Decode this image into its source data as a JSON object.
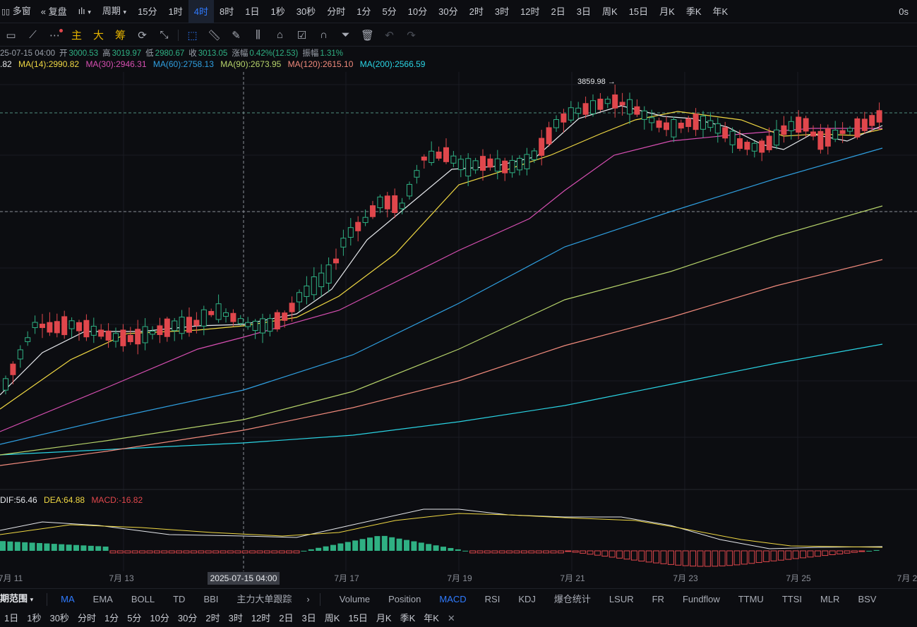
{
  "topbar": {
    "items": [
      "多窗",
      "复盘",
      "周期",
      "15分",
      "1时",
      "4时",
      "8时",
      "1日",
      "1秒",
      "30秒",
      "分时",
      "1分",
      "5分",
      "10分",
      "30分",
      "2时",
      "3时",
      "12时",
      "2日",
      "3日",
      "周K",
      "15日",
      "月K",
      "季K",
      "年K"
    ],
    "active": "4时",
    "right": "0s"
  },
  "toolbar": {
    "labels": [
      "主",
      "大",
      "筹"
    ]
  },
  "info": {
    "date": "25-07-15 04:00",
    "open_label": "开",
    "open": "3000.53",
    "high_label": "高",
    "high": "3019.97",
    "low_label": "低",
    "low": "2980.67",
    "close_label": "收",
    "close": "3013.05",
    "chg_label": "涨幅",
    "chg": "0.42%(12.53)",
    "amp_label": "振幅",
    "amp": "1.31%"
  },
  "ma": [
    {
      "text": ".82",
      "color": "#e6e8ec"
    },
    {
      "text": "MA(14):2990.82",
      "color": "#f0d843"
    },
    {
      "text": "MA(30):2946.31",
      "color": "#d74fb2"
    },
    {
      "text": "MA(60):2758.13",
      "color": "#2f9fe0"
    },
    {
      "text": "MA(90):2673.95",
      "color": "#b6d36a"
    },
    {
      "text": "MA(120):2615.10",
      "color": "#f08a7c"
    },
    {
      "text": "MA(200):2566.59",
      "color": "#2ad4e4"
    }
  ],
  "macd_info": [
    {
      "text": "DIF:56.46",
      "color": "#e6e8ec"
    },
    {
      "text": "DEA:64.88",
      "color": "#f0d843"
    },
    {
      "text": "MACD:-16.82",
      "color": "#e0474c"
    }
  ],
  "chart": {
    "peak_label": "3859.98",
    "crosshair_date": "2025-07-15 04:00",
    "x_labels": [
      "7月 11",
      "7月 13",
      "7月 17",
      "7月 19",
      "7月 21",
      "7月 23",
      "7月 25",
      "7月 2"
    ]
  },
  "colors": {
    "up": "#2fb083",
    "down": "#e0474c",
    "active": "#2f7bff"
  },
  "bottom_tabs": {
    "range_label": "期范围",
    "indicators": [
      "MA",
      "EMA",
      "BOLL",
      "TD",
      "BBI",
      "主力大单跟踪"
    ],
    "active_indicator": "MA",
    "sub": [
      "Volume",
      "Position",
      "MACD",
      "RSI",
      "KDJ",
      "爆仓统计",
      "LSUR",
      "FR",
      "Fundflow",
      "TTMU",
      "TTSI",
      "MLR",
      "BSV"
    ],
    "active_sub": "MACD"
  },
  "bottom_periods": [
    "1日",
    "1秒",
    "30秒",
    "分时",
    "1分",
    "5分",
    "10分",
    "30分",
    "2时",
    "3时",
    "12时",
    "2日",
    "3日",
    "周K",
    "15日",
    "月K",
    "季K",
    "年K"
  ]
}
